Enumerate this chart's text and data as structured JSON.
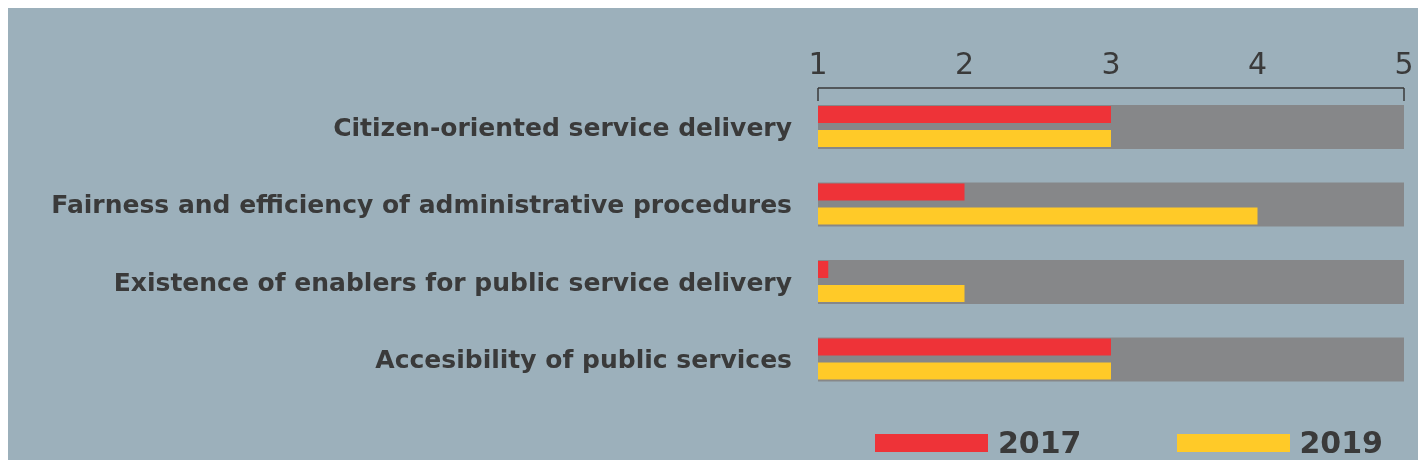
{
  "chart_data": {
    "type": "bar",
    "orientation": "horizontal",
    "categories": [
      "Citizen-oriented service delivery",
      "Fairness and efficiency of administrative procedures",
      "Existence of enablers for public service delivery",
      "Accesibility of public services"
    ],
    "series": [
      {
        "color": "#868789",
        "values": [
          5,
          5,
          5,
          5
        ]
      },
      {
        "name": "2017",
        "color": "#ee3338",
        "values": [
          3,
          2,
          1.07,
          3
        ]
      },
      {
        "name": "2019",
        "color": "#ffca28",
        "values": [
          3,
          4,
          2,
          3
        ]
      }
    ],
    "xlim": [
      1,
      5
    ],
    "xticks": [
      1,
      2,
      3,
      4,
      5
    ],
    "legend": "bottom right"
  }
}
